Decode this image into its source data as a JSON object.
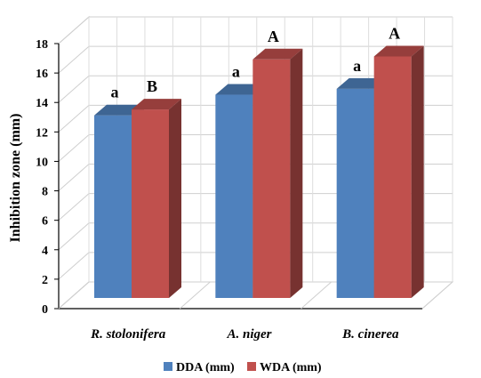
{
  "chart_data": {
    "type": "bar",
    "ylabel": "Inhibition zone (mm)",
    "ylim": [
      0,
      18
    ],
    "yticks": [
      0,
      2,
      4,
      6,
      8,
      10,
      12,
      14,
      16,
      18
    ],
    "categories": [
      "R. stolonifera",
      "A. niger",
      "B. cinerea"
    ],
    "series": [
      {
        "name": "DDA (mm)",
        "values": [
          12.4,
          13.8,
          14.2
        ],
        "labels": [
          "a",
          "a",
          "a"
        ],
        "color": "#4F81BD"
      },
      {
        "name": "WDA (mm)",
        "values": [
          12.8,
          16.2,
          16.4
        ],
        "labels": [
          "B",
          "A",
          "A"
        ],
        "color": "#C0504D"
      }
    ],
    "grid": true,
    "legend": "bottom",
    "style": "3d-clustered-column"
  }
}
